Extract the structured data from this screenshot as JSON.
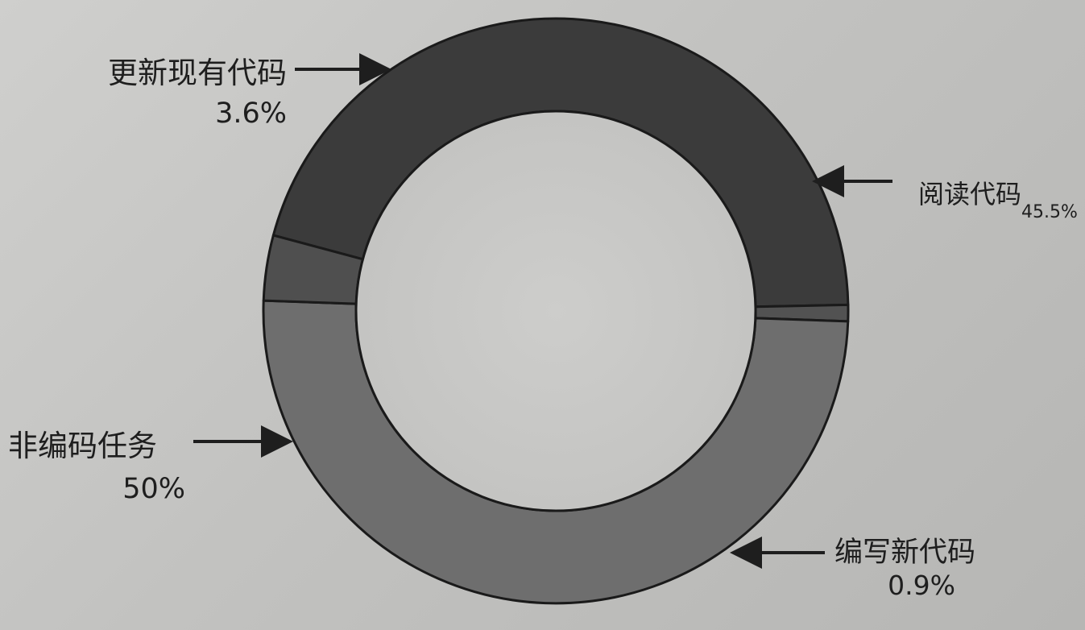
{
  "chart_data": {
    "type": "pie",
    "style": "donut",
    "title": "",
    "slices": [
      {
        "label": "阅读代码",
        "value": 45.5,
        "percent_label": "45.5%",
        "color": "#3b3b3b"
      },
      {
        "label": "编写新代码",
        "value": 0.9,
        "percent_label": "0.9%",
        "color": "#525252"
      },
      {
        "label": "非编码任务",
        "value": 50,
        "percent_label": "50%",
        "color": "#6e6e6e"
      },
      {
        "label": "更新现有代码",
        "value": 3.6,
        "percent_label": "3.6%",
        "color": "#4f4f4f"
      }
    ],
    "legend": "none",
    "labels_with_arrows": true
  }
}
